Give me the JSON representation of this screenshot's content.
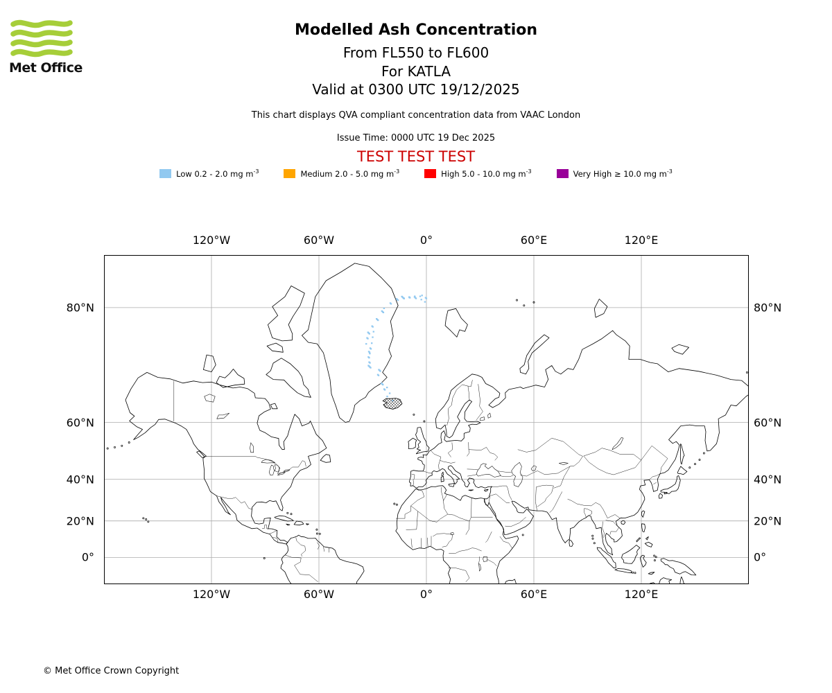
{
  "logo": {
    "text": "Met Office",
    "green": "#A6CE39"
  },
  "header": {
    "title": "Modelled Ash Concentration",
    "flight_levels": "From FL550 to FL600",
    "volcano": "For KATLA",
    "valid": "Valid at 0300 UTC 19/12/2025",
    "description": "This chart displays QVA compliant concentration data from VAAC London",
    "issue_time": "Issue Time: 0000 UTC 19 Dec 2025",
    "test_banner": "TEST TEST TEST",
    "test_banner_color": "#CC0000"
  },
  "legend": {
    "items": [
      {
        "label": "Low 0.2 - 2.0 mg m",
        "exp": "-3",
        "color": "#92C9F0"
      },
      {
        "label": "Medium 2.0 - 5.0 mg m",
        "exp": "-3",
        "color": "#FFA500"
      },
      {
        "label": "High 5.0 - 10.0 mg m",
        "exp": "-3",
        "color": "#FF0000"
      },
      {
        "label": "Very High ≥ 10.0 mg m",
        "exp": "-3",
        "color": "#990099"
      }
    ]
  },
  "map": {
    "lon_ticks": [
      "120°W",
      "60°W",
      "0°",
      "60°E",
      "120°E"
    ],
    "lat_ticks": [
      "80°N",
      "60°N",
      "40°N",
      "20°N",
      "0°"
    ],
    "iceland_source_hatched": true,
    "ash_plume": {
      "concentration_band": "Low 0.2 - 2.0 mg m-3",
      "color": "#92C9F0",
      "points": [
        [
          -20.8,
          66.2
        ],
        [
          -22.5,
          67.8
        ],
        [
          -24,
          69
        ],
        [
          -26.8,
          70.9
        ],
        [
          -26.2,
          71.8
        ],
        [
          -32,
          72.5
        ],
        [
          -32.8,
          73.4
        ],
        [
          -33.2,
          74.2
        ],
        [
          -33,
          75
        ],
        [
          -32.5,
          75.8
        ],
        [
          -32,
          76.6
        ],
        [
          -31.5,
          77.3
        ],
        [
          -30,
          78.2
        ],
        [
          -27.5,
          79
        ],
        [
          -24.5,
          79.8
        ],
        [
          -21,
          80.3
        ],
        [
          -17.5,
          80.7
        ],
        [
          -14.5,
          80.9
        ],
        [
          -11.5,
          81
        ],
        [
          -8.5,
          81.1
        ],
        [
          -5.5,
          81.1
        ],
        [
          -2.5,
          81
        ],
        [
          -0.5,
          80.8
        ]
      ]
    }
  },
  "footer": {
    "copyright": "© Met Office Crown Copyright"
  }
}
